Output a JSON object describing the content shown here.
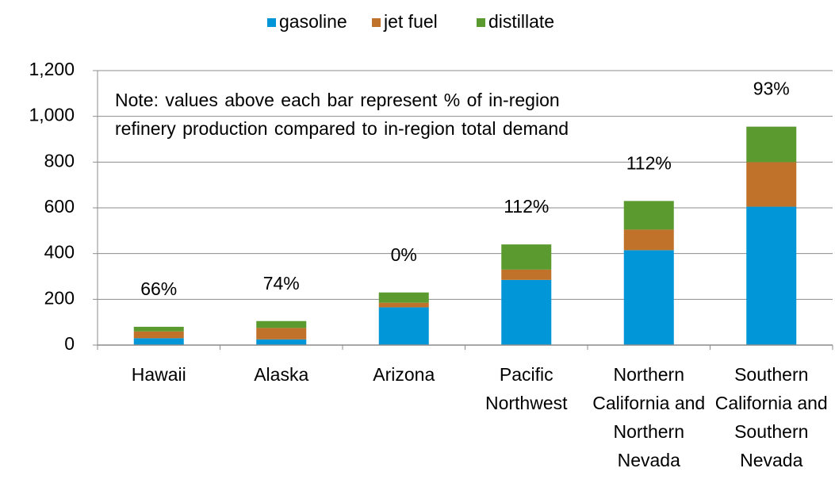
{
  "chart_data": {
    "type": "stacked_bar",
    "note": "Note: values above each bar represent % of in-region refinery production compared to in-region total demand",
    "categories": [
      "Hawaii",
      "Alaska",
      "Arizona",
      "Pacific Northwest",
      "Northern California and Northern Nevada",
      "Southern California and Southern Nevada"
    ],
    "series": [
      {
        "name": "gasoline",
        "color": "#0096d7",
        "values": [
          30,
          25,
          165,
          285,
          415,
          605
        ]
      },
      {
        "name": "jet fuel",
        "color": "#c0722a",
        "values": [
          30,
          50,
          20,
          45,
          90,
          195
        ]
      },
      {
        "name": "distillate",
        "color": "#5b9a2f",
        "values": [
          20,
          30,
          45,
          110,
          125,
          155
        ]
      }
    ],
    "bar_labels": [
      "66%",
      "74%",
      "0%",
      "112%",
      "112%",
      "93%"
    ],
    "ylim": [
      0,
      1200
    ],
    "yticks": [
      0,
      200,
      400,
      600,
      800,
      {
        "value": 1000,
        "label": "1,000"
      },
      {
        "value": 1200,
        "label": "1,200"
      }
    ],
    "grid": true,
    "legend": "top"
  }
}
